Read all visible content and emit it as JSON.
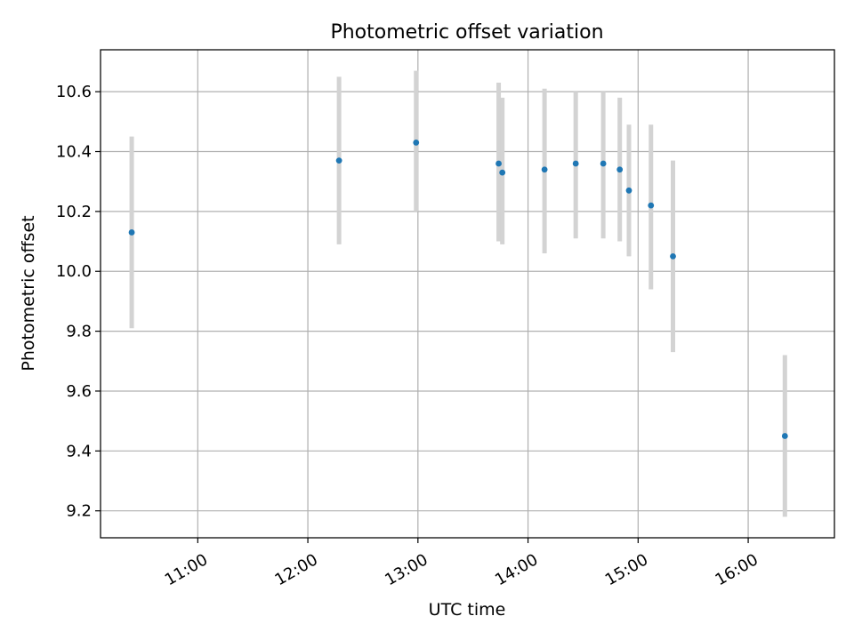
{
  "chart_data": {
    "type": "scatter",
    "title": "Photometric offset variation",
    "xlabel": "UTC time",
    "ylabel": "Photometric offset",
    "x_ticks": [
      "11:00",
      "12:00",
      "13:00",
      "14:00",
      "15:00",
      "16:00"
    ],
    "y_ticks": [
      "9.2",
      "9.4",
      "9.6",
      "9.8",
      "10.0",
      "10.2",
      "10.4",
      "10.6"
    ],
    "xlim": [
      "10:07",
      "16:47"
    ],
    "ylim": [
      9.11,
      10.74
    ],
    "grid": true,
    "error_bar_color": "#d3d3d3",
    "point_color": "#1f77b4",
    "points": [
      {
        "x": "10:24",
        "y": 10.13,
        "ylow": 9.81,
        "yhigh": 10.45
      },
      {
        "x": "12:17",
        "y": 10.37,
        "ylow": 10.09,
        "yhigh": 10.65
      },
      {
        "x": "12:59",
        "y": 10.43,
        "ylow": 10.2,
        "yhigh": 10.67
      },
      {
        "x": "13:44",
        "y": 10.36,
        "ylow": 10.1,
        "yhigh": 10.63
      },
      {
        "x": "13:46",
        "y": 10.33,
        "ylow": 10.09,
        "yhigh": 10.58
      },
      {
        "x": "14:09",
        "y": 10.34,
        "ylow": 10.06,
        "yhigh": 10.61
      },
      {
        "x": "14:26",
        "y": 10.36,
        "ylow": 10.11,
        "yhigh": 10.6
      },
      {
        "x": "14:41",
        "y": 10.36,
        "ylow": 10.11,
        "yhigh": 10.6
      },
      {
        "x": "14:50",
        "y": 10.34,
        "ylow": 10.1,
        "yhigh": 10.58
      },
      {
        "x": "14:55",
        "y": 10.27,
        "ylow": 10.05,
        "yhigh": 10.49
      },
      {
        "x": "15:07",
        "y": 10.22,
        "ylow": 9.94,
        "yhigh": 10.49
      },
      {
        "x": "15:19",
        "y": 10.05,
        "ylow": 9.73,
        "yhigh": 10.37
      },
      {
        "x": "16:20",
        "y": 9.45,
        "ylow": 9.18,
        "yhigh": 9.72
      }
    ]
  }
}
